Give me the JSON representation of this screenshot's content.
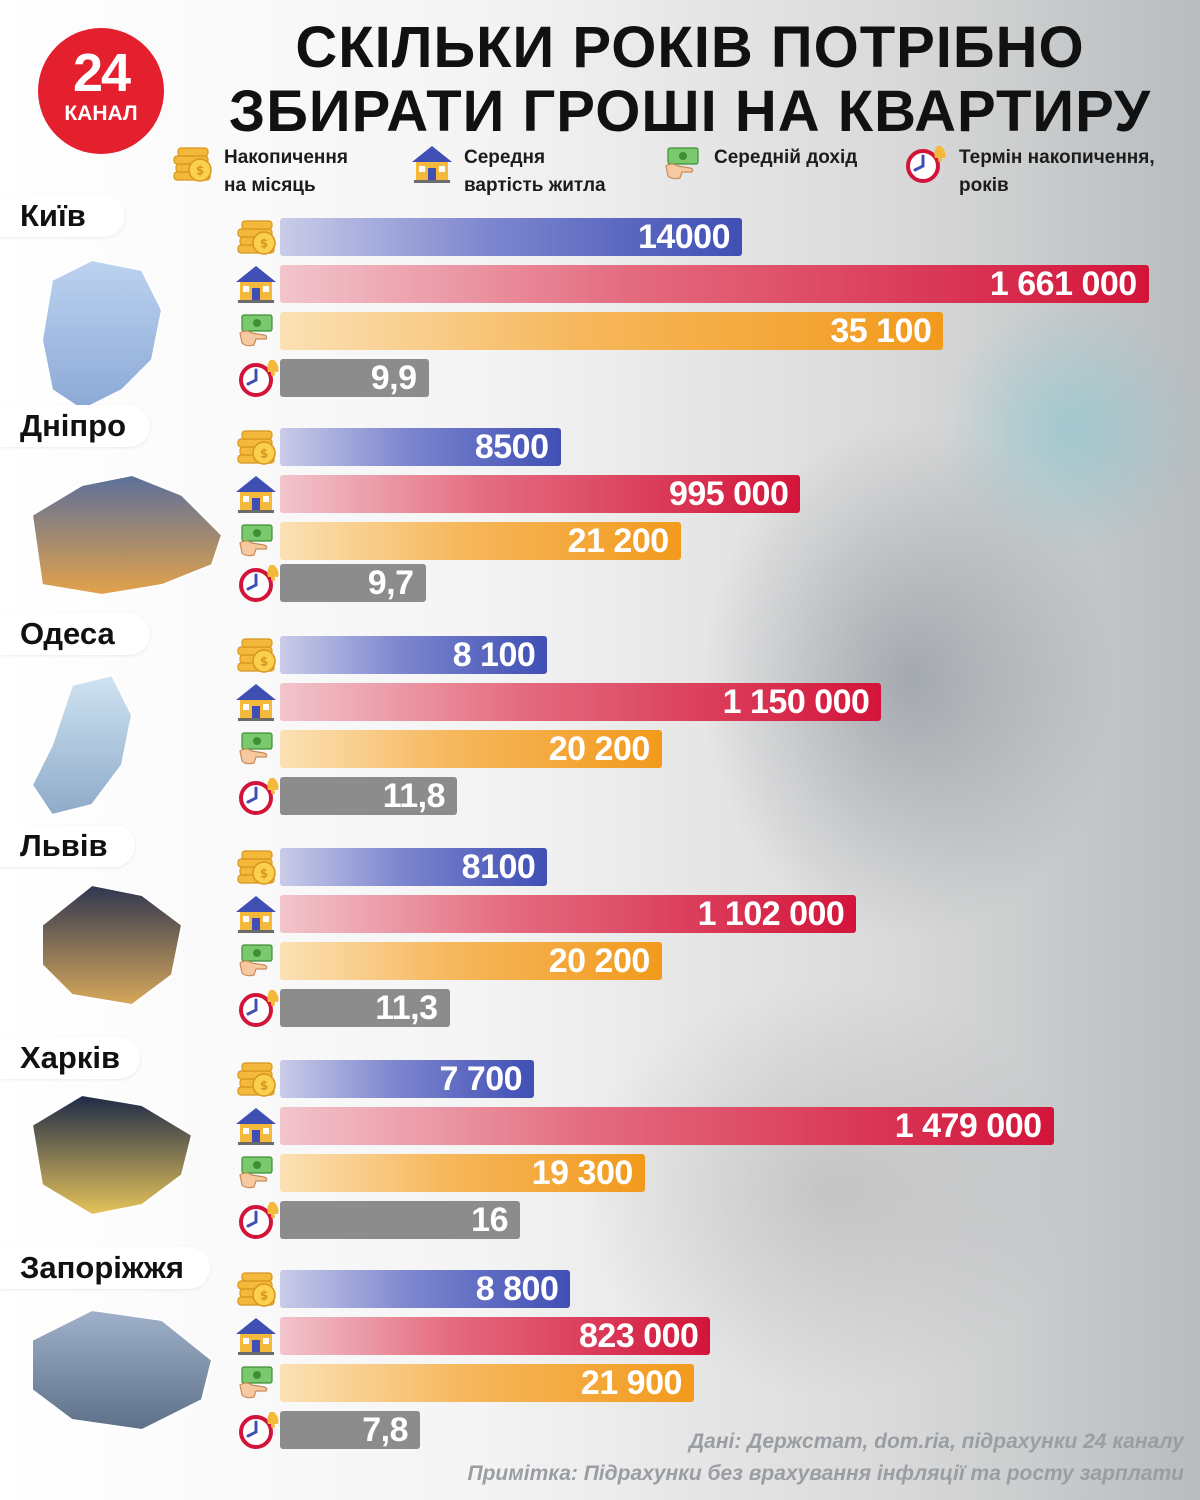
{
  "brand": {
    "logo_number": "24",
    "logo_text": "КАНАЛ"
  },
  "title": "СКІЛЬКИ РОКІВ ПОТРІБНО\nЗБИРАТИ ГРОШІ НА КВАРТИРУ",
  "legend": [
    {
      "icon": "coins-icon",
      "label": "Накопичення\nна місяць"
    },
    {
      "icon": "house-icon",
      "label": "Середня\nвартість житла"
    },
    {
      "icon": "money-hand-icon",
      "label": "Середній дохід"
    },
    {
      "icon": "alarm-clock-icon",
      "label": "Термін накопичення,\nроків"
    }
  ],
  "colors": {
    "savings": "#3f4fb4",
    "price": "#d3143a",
    "income": "#f29a1c",
    "term": "#8c8c8c",
    "brand_red": "#e5202e"
  },
  "chart_data": {
    "type": "bar",
    "title": "СКІЛЬКИ РОКІВ ПОТРІБНО ЗБИРАТИ ГРОШІ НА КВАРТИРУ",
    "series": [
      {
        "name": "Накопичення на місяць",
        "key": "savings"
      },
      {
        "name": "Середня вартість житла",
        "key": "price"
      },
      {
        "name": "Середній дохід",
        "key": "income"
      },
      {
        "name": "Термін накопичення, років",
        "key": "term"
      }
    ],
    "cities": [
      {
        "name": "Київ",
        "values": {
          "savings": 14000,
          "price": 1661000,
          "income": 35100,
          "term": 9.9
        },
        "labels": {
          "savings": "14000",
          "price": "1 661 000",
          "income": "35 100",
          "term": "9,9"
        }
      },
      {
        "name": "Дніпро",
        "values": {
          "savings": 8500,
          "price": 995000,
          "income": 21200,
          "term": 9.7
        },
        "labels": {
          "savings": "8500",
          "price": "995 000",
          "income": "21 200",
          "term": "9,7"
        }
      },
      {
        "name": "Одеса",
        "values": {
          "savings": 8100,
          "price": 1150000,
          "income": 20200,
          "term": 11.8
        },
        "labels": {
          "savings": "8 100",
          "price": "1 150 000",
          "income": "20 200",
          "term": "11,8"
        }
      },
      {
        "name": "Львів",
        "values": {
          "savings": 8100,
          "price": 1102000,
          "income": 20200,
          "term": 11.3
        },
        "labels": {
          "savings": "8100",
          "price": "1 102 000",
          "income": "20 200",
          "term": "11,3"
        }
      },
      {
        "name": "Харків",
        "values": {
          "savings": 7700,
          "price": 1479000,
          "income": 19300,
          "term": 16
        },
        "labels": {
          "savings": "7 700",
          "price": "1 479 000",
          "income": "19 300",
          "term": "16"
        }
      },
      {
        "name": "Запоріжжя",
        "values": {
          "savings": 8800,
          "price": 823000,
          "income": 21900,
          "term": 7.8
        },
        "labels": {
          "savings": "8 800",
          "price": "823 000",
          "income": "21 900",
          "term": "7,8"
        }
      }
    ]
  },
  "footer": {
    "source": "Дані: Держстат, dom.ria, підрахунки 24 каналу",
    "note": "Примітка: Підрахунки без врахування інфляції та росту зарплати"
  }
}
